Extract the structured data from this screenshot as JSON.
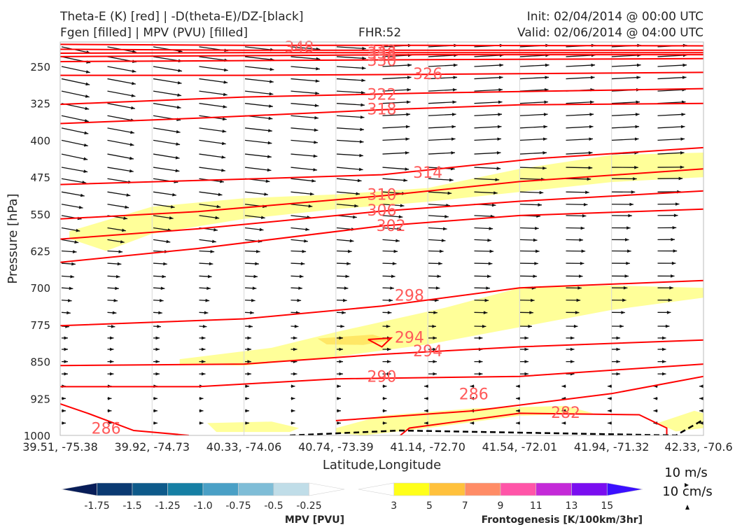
{
  "header": {
    "title_line1": "Theta-E (K) [red] | -D(theta-E)/DZ-[black]",
    "title_line2": "Fgen [filled] | MPV (PVU) [filled]",
    "fhr": "FHR:52",
    "init": "Init: 02/04/2014 @ 00:00 UTC",
    "valid": "Valid: 02/06/2014 @ 04:00 UTC"
  },
  "chart_data": {
    "type": "cross-section",
    "xlabel": "Latitude,Longitude",
    "ylabel": "Pressure [hPa]",
    "xticks": [
      "39.51, -75.38",
      "39.92, -74.73",
      "40.33, -74.06",
      "40.74, -73.39",
      "41.14, -72.70",
      "41.54, -72.01",
      "41.94, -71.32",
      "42.33, -70.6"
    ],
    "yticks": [
      250,
      325,
      400,
      475,
      550,
      625,
      700,
      775,
      850,
      925,
      1000
    ],
    "ylim": [
      1000,
      200
    ],
    "x_domain": [
      0,
      7
    ],
    "theta_e_contours": [
      {
        "label": "348",
        "label_at": [
          2.6,
          210
        ],
        "points": [
          [
            0,
            205
          ],
          [
            2,
            207
          ],
          [
            4,
            207
          ],
          [
            7,
            208
          ]
        ]
      },
      {
        "label": "342",
        "label_at": [
          3.5,
          217
        ],
        "points": [
          [
            0,
            215
          ],
          [
            2,
            217
          ],
          [
            4,
            217
          ],
          [
            7,
            217
          ]
        ]
      },
      {
        "label": "338",
        "label_at": [
          3.5,
          222
        ],
        "points": [
          [
            0,
            223
          ],
          [
            2,
            222
          ],
          [
            4,
            222
          ],
          [
            7,
            222
          ]
        ]
      },
      {
        "label": "334",
        "label_at": [
          3.5,
          227
        ],
        "points": [
          [
            0,
            230
          ],
          [
            2,
            228
          ],
          [
            4,
            226
          ],
          [
            7,
            226
          ]
        ]
      },
      {
        "label": "330",
        "label_at": [
          3.5,
          237
        ],
        "points": [
          [
            0,
            240
          ],
          [
            2,
            238
          ],
          [
            4,
            236
          ],
          [
            7,
            234
          ]
        ]
      },
      {
        "label": "326",
        "label_at": [
          4.0,
          264
        ],
        "points": [
          [
            0,
            268
          ],
          [
            2,
            268
          ],
          [
            4,
            266
          ],
          [
            7,
            262
          ]
        ]
      },
      {
        "label": "322",
        "label_at": [
          3.5,
          306
        ],
        "points": [
          [
            0,
            327
          ],
          [
            2,
            312
          ],
          [
            4,
            304
          ],
          [
            7,
            295
          ]
        ]
      },
      {
        "label": "318",
        "label_at": [
          3.5,
          336
        ],
        "points": [
          [
            0,
            366
          ],
          [
            1.5,
            355
          ],
          [
            3.5,
            338
          ],
          [
            5,
            328
          ],
          [
            7,
            325
          ]
        ]
      },
      {
        "label": "314",
        "label_at": [
          4.0,
          465
        ],
        "points": [
          [
            0,
            490
          ],
          [
            2,
            479
          ],
          [
            3.5,
            470
          ],
          [
            5.2,
            437
          ],
          [
            7,
            415
          ]
        ]
      },
      {
        "label": "310",
        "label_at": [
          3.5,
          510
        ],
        "points": [
          [
            0,
            560
          ],
          [
            1.5,
            545
          ],
          [
            3.5,
            513
          ],
          [
            5,
            484
          ],
          [
            7,
            458
          ]
        ]
      },
      {
        "label": "306",
        "label_at": [
          3.5,
          542
        ],
        "points": [
          [
            0,
            601
          ],
          [
            1.5,
            580
          ],
          [
            3.5,
            544
          ],
          [
            5,
            524
          ],
          [
            7,
            503
          ]
        ]
      },
      {
        "label": "302",
        "label_at": [
          3.6,
          573
        ],
        "points": [
          [
            0,
            648
          ],
          [
            1.5,
            620
          ],
          [
            3.5,
            574
          ],
          [
            5,
            553
          ],
          [
            7,
            540
          ]
        ]
      },
      {
        "label": "298",
        "label_at": [
          3.8,
          715
        ],
        "points": [
          [
            0,
            777
          ],
          [
            2,
            763
          ],
          [
            3.5,
            737
          ],
          [
            5,
            700
          ],
          [
            7,
            685
          ]
        ]
      },
      {
        "label": "294",
        "label_at": [
          4.0,
          828
        ],
        "points": [
          [
            0,
            858
          ],
          [
            2,
            855
          ],
          [
            3.5,
            835
          ],
          [
            5,
            820
          ],
          [
            7,
            806
          ]
        ]
      },
      {
        "label": "290",
        "label_at": [
          3.5,
          880
        ],
        "points": [
          [
            0,
            901
          ],
          [
            1.5,
            901
          ],
          [
            3,
            885
          ],
          [
            5,
            880
          ],
          [
            7,
            855
          ]
        ]
      },
      {
        "label": "286",
        "label_at": [
          4.5,
          915
        ],
        "points": [
          [
            3,
            970
          ],
          [
            4.5,
            950
          ],
          [
            6,
            915
          ],
          [
            7,
            880
          ]
        ]
      },
      {
        "label": "286",
        "label_at": [
          0.5,
          985
        ],
        "points": [
          [
            0,
            936
          ],
          [
            0.3,
            955
          ],
          [
            0.8,
            990
          ],
          [
            1.4,
            1000
          ]
        ]
      },
      {
        "label": "282",
        "label_at": [
          5.5,
          953
        ],
        "points": [
          [
            3.7,
            1000
          ],
          [
            3.8,
            985
          ],
          [
            5,
            955
          ],
          [
            6.3,
            958
          ],
          [
            6.6,
            985
          ],
          [
            6.6,
            1000
          ]
        ]
      },
      {
        "label": "294",
        "label_at": [
          3.8,
          800
        ],
        "points": [
          [
            3.35,
            805
          ],
          [
            3.6,
            802
          ],
          [
            3.5,
            820
          ],
          [
            3.35,
            805
          ]
        ]
      }
    ],
    "fgen_regions": [
      {
        "level": "3-5",
        "points": [
          [
            0.1,
            585
          ],
          [
            1,
            535
          ],
          [
            2,
            518
          ],
          [
            3,
            510
          ],
          [
            4,
            497
          ],
          [
            5,
            458
          ],
          [
            6,
            430
          ],
          [
            7,
            425
          ],
          [
            7,
            475
          ],
          [
            6,
            485
          ],
          [
            5,
            505
          ],
          [
            4,
            525
          ],
          [
            3,
            540
          ],
          [
            2,
            560
          ],
          [
            1,
            590
          ],
          [
            0.5,
            625
          ],
          [
            0.1,
            600
          ]
        ]
      },
      {
        "level": "3-5",
        "points": [
          [
            1.3,
            845
          ],
          [
            2.3,
            822
          ],
          [
            3,
            790
          ],
          [
            4.2,
            740
          ],
          [
            5,
            700
          ],
          [
            6,
            695
          ],
          [
            7,
            700
          ],
          [
            7,
            720
          ],
          [
            6,
            745
          ],
          [
            5,
            780
          ],
          [
            4,
            815
          ],
          [
            3,
            840
          ],
          [
            2,
            858
          ],
          [
            1.3,
            855
          ]
        ]
      },
      {
        "level": "3-5",
        "points": [
          [
            1.6,
            975
          ],
          [
            2.3,
            972
          ],
          [
            2.6,
            985
          ],
          [
            2.5,
            993
          ],
          [
            1.7,
            993
          ]
        ]
      },
      {
        "level": "3-5",
        "points": [
          [
            3,
            985
          ],
          [
            3.5,
            960
          ],
          [
            4.5,
            945
          ],
          [
            5.5,
            940
          ],
          [
            5.8,
            955
          ],
          [
            5,
            960
          ],
          [
            4,
            985
          ],
          [
            3.3,
            1000
          ],
          [
            3,
            995
          ]
        ]
      },
      {
        "level": "3-5",
        "points": [
          [
            6.5,
            975
          ],
          [
            6.9,
            950
          ],
          [
            7,
            955
          ],
          [
            7,
            985
          ],
          [
            6.7,
            992
          ]
        ]
      },
      {
        "level": "5-7",
        "points": [
          [
            2.8,
            803
          ],
          [
            3.4,
            795
          ],
          [
            3.6,
            806
          ],
          [
            3.3,
            816
          ],
          [
            2.9,
            815
          ]
        ]
      }
    ],
    "dashed_line": [
      [
        2.5,
        1000
      ],
      [
        3.7,
        990
      ],
      [
        6.7,
        1000
      ],
      [
        7,
        968
      ]
    ],
    "wind_reference": {
      "label": "10 m/s",
      "label2": "10 cm/s"
    },
    "mpv_colorbar": {
      "label": "MPV [PVU]",
      "ticks": [
        "-1.75",
        "-1.5",
        "-1.25",
        "-1.0",
        "-0.75",
        "-0.5",
        "-0.25"
      ],
      "colors": [
        "#081d58",
        "#0b3a72",
        "#0e5a8a",
        "#167fa4",
        "#4aa0c6",
        "#7fbdd7",
        "#c0dde8",
        "#ffffff"
      ]
    },
    "fgen_colorbar": {
      "label": "Frontogenesis [K/100km/3hr]",
      "ticks": [
        "3",
        "5",
        "7",
        "9",
        "11",
        "13",
        "15"
      ],
      "colors": [
        "#ffffff",
        "#ffff1a",
        "#ffc13c",
        "#ff8c66",
        "#ff55a8",
        "#c42ad8",
        "#7a0ef0",
        "#3b10ff"
      ]
    }
  }
}
